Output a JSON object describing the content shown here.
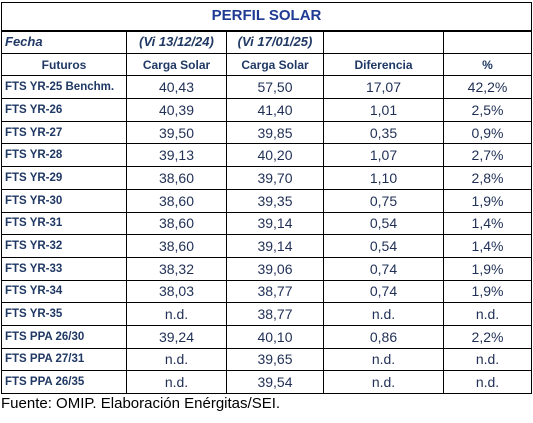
{
  "title": "PERFIL SOLAR",
  "fecha_label": "Fecha",
  "date1": "(Vi 13/12/24)",
  "date2": "(Vi 17/01/25)",
  "headers": [
    "Futuros",
    "Carga Solar",
    "Carga Solar",
    "Diferencia",
    "%"
  ],
  "rows": [
    {
      "name": "FTS YR-25 Benchm.",
      "v1": "40,43",
      "v2": "57,50",
      "diff": "17,07",
      "pct": "42,2%"
    },
    {
      "name": "FTS YR-26",
      "v1": "40,39",
      "v2": "41,40",
      "diff": "1,01",
      "pct": "2,5%"
    },
    {
      "name": "FTS YR-27",
      "v1": "39,50",
      "v2": "39,85",
      "diff": "0,35",
      "pct": "0,9%"
    },
    {
      "name": "FTS YR-28",
      "v1": "39,13",
      "v2": "40,20",
      "diff": "1,07",
      "pct": "2,7%"
    },
    {
      "name": "FTS YR-29",
      "v1": "38,60",
      "v2": "39,70",
      "diff": "1,10",
      "pct": "2,8%"
    },
    {
      "name": "FTS YR-30",
      "v1": "38,60",
      "v2": "39,35",
      "diff": "0,75",
      "pct": "1,9%"
    },
    {
      "name": "FTS YR-31",
      "v1": "38,60",
      "v2": "39,14",
      "diff": "0,54",
      "pct": "1,4%"
    },
    {
      "name": "FTS YR-32",
      "v1": "38,60",
      "v2": "39,14",
      "diff": "0,54",
      "pct": "1,4%"
    },
    {
      "name": "FTS YR-33",
      "v1": "38,32",
      "v2": "39,06",
      "diff": "0,74",
      "pct": "1,9%"
    },
    {
      "name": "FTS YR-34",
      "v1": "38,03",
      "v2": "38,77",
      "diff": "0,74",
      "pct": "1,9%"
    },
    {
      "name": "FTS YR-35",
      "v1": "n.d.",
      "v2": "38,77",
      "diff": "n.d.",
      "pct": "n.d."
    },
    {
      "name": "FTS PPA 26/30",
      "v1": "39,24",
      "v2": "40,10",
      "diff": "0,86",
      "pct": "2,2%"
    },
    {
      "name": "FTS PPA 27/31",
      "v1": "n.d.",
      "v2": "39,65",
      "diff": "n.d.",
      "pct": "n.d."
    },
    {
      "name": "FTS PPA 26/35",
      "v1": "n.d.",
      "v2": "39,54",
      "diff": "n.d.",
      "pct": "n.d."
    }
  ],
  "source": "Fuente: OMIP. Elaboración Enérgitas/SEI."
}
